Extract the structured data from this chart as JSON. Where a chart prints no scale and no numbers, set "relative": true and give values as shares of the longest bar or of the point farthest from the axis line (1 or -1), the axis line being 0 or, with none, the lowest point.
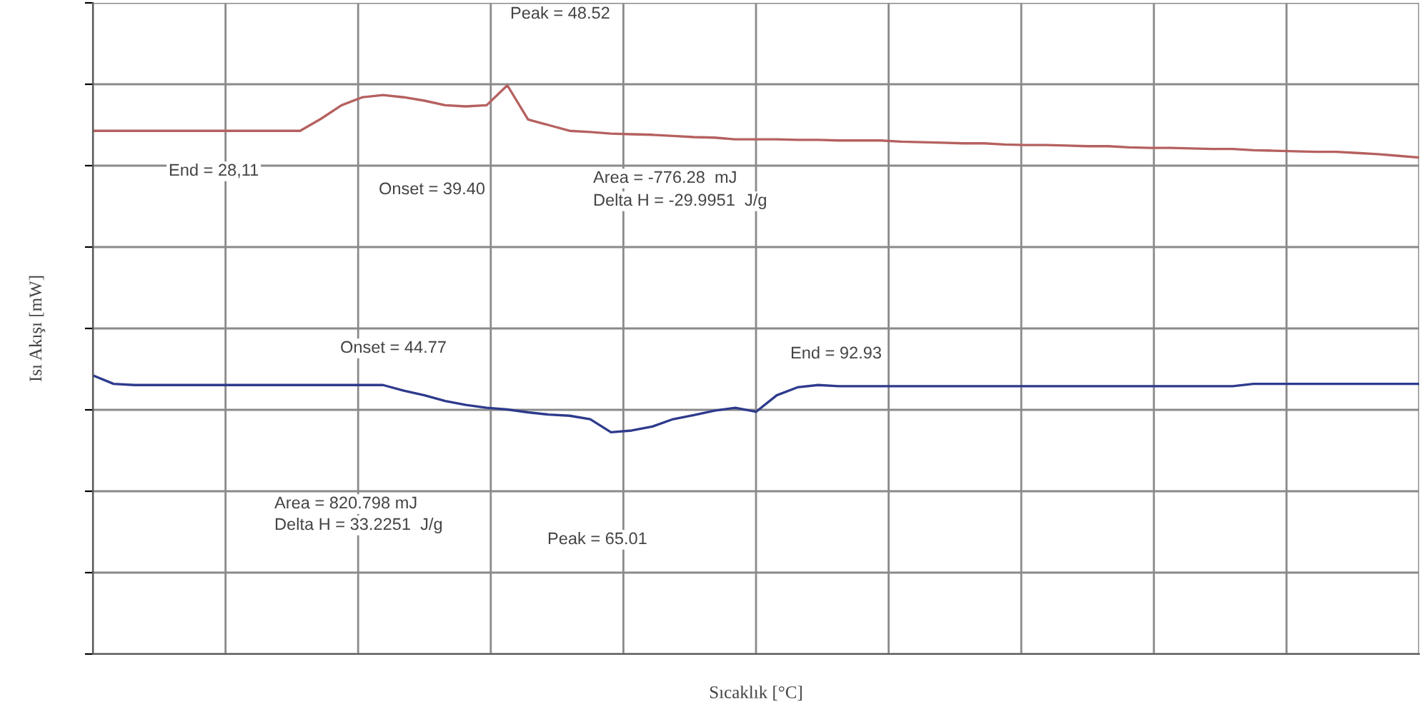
{
  "chart_data": {
    "type": "line",
    "relative": true,
    "grid": true,
    "tick_labels": false,
    "xlabel": "Sıcaklık [°C]",
    "ylabel": "Isı Akışı [mW]",
    "categories": [
      null,
      null,
      null,
      null,
      null,
      null,
      null,
      null,
      null,
      null,
      null,
      null,
      null,
      null,
      null,
      null,
      null,
      null,
      null,
      null,
      null,
      null,
      null,
      null,
      null,
      null,
      null,
      null,
      null,
      null,
      null,
      null,
      null,
      null,
      null,
      null,
      null,
      null,
      null,
      null,
      null,
      null,
      null,
      null,
      null,
      null,
      null,
      null,
      null,
      null,
      null,
      null,
      null,
      null,
      null,
      null,
      null,
      null,
      null,
      null,
      null,
      null,
      null,
      null,
      null
    ],
    "series": [
      {
        "color": "#b5615f",
        "values": [
          0.92,
          0.92,
          0.92,
          0.92,
          0.92,
          0.92,
          0.92,
          0.92,
          0.92,
          0.92,
          0.92,
          0.941,
          0.965,
          0.979,
          0.983,
          0.979,
          0.973,
          0.965,
          0.963,
          0.965,
          1.0,
          0.94,
          0.93,
          0.92,
          0.918,
          0.915,
          0.914,
          0.913,
          0.911,
          0.909,
          0.908,
          0.905,
          0.905,
          0.905,
          0.904,
          0.904,
          0.903,
          0.903,
          0.903,
          0.901,
          0.9,
          0.899,
          0.898,
          0.898,
          0.896,
          0.895,
          0.895,
          0.894,
          0.893,
          0.893,
          0.891,
          0.89,
          0.89,
          0.889,
          0.888,
          0.888,
          0.886,
          0.885,
          0.884,
          0.883,
          0.883,
          0.881,
          0.879,
          0.876,
          0.873
        ]
      },
      {
        "color": "#2e3a8c",
        "values": [
          0.49,
          0.475,
          0.473,
          0.473,
          0.473,
          0.473,
          0.473,
          0.473,
          0.473,
          0.473,
          0.473,
          0.473,
          0.473,
          0.473,
          0.473,
          0.463,
          0.455,
          0.445,
          0.438,
          0.433,
          0.43,
          0.425,
          0.421,
          0.419,
          0.413,
          0.39,
          0.393,
          0.4,
          0.413,
          0.42,
          0.428,
          0.433,
          0.426,
          0.455,
          0.469,
          0.473,
          0.471,
          0.471,
          0.471,
          0.471,
          0.471,
          0.471,
          0.471,
          0.471,
          0.471,
          0.471,
          0.471,
          0.471,
          0.471,
          0.471,
          0.471,
          0.471,
          0.471,
          0.471,
          0.471,
          0.471,
          0.475,
          0.475,
          0.475,
          0.475,
          0.475,
          0.475,
          0.475,
          0.475,
          0.475
        ]
      }
    ],
    "annotations": [
      "Peak = 48.52",
      "End = 28,11",
      "Onset = 39.40",
      "Area = -776.28  mJ",
      "Delta H = -29.9951  J/g",
      "Onset = 44.77",
      "End = 92.93",
      "Area = 820.798 mJ",
      "Delta H = 33.2251  J/g",
      "Peak = 65.01"
    ]
  }
}
